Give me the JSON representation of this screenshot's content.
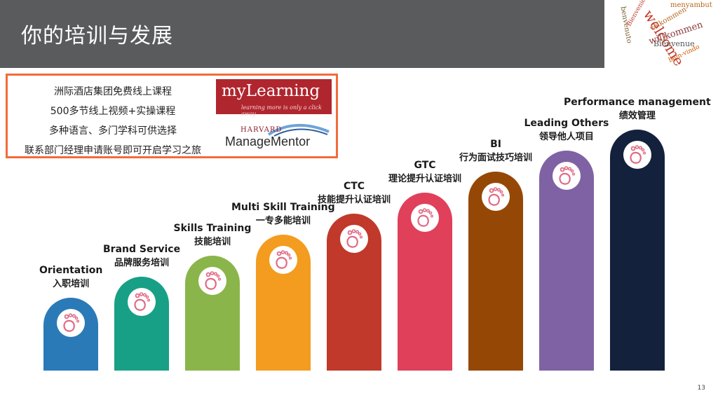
{
  "slide": {
    "title": "你的培训与发展",
    "page_number": "13"
  },
  "welcome_words": [
    "welcome",
    "Bienvenue",
    "willkommen",
    "velkommen",
    "menyambut",
    "benvenuto",
    "Bienvenido",
    "bem-vindo"
  ],
  "promo": {
    "lines": [
      "洲际酒店集团免费线上课程",
      "500多节线上视频+实操课程",
      "多种语言、多门学科可供选择",
      "联系部门经理申请账号即可开启学习之旅"
    ],
    "mylearning_name": "myLearning",
    "mylearning_tagline": "learning more is only a click away",
    "harvard_top": "HARVARD",
    "harvard_main": "ManageMentor"
  },
  "steps": [
    {
      "en": "Orientation",
      "cn": "入职培训",
      "color": "#2a7ab8"
    },
    {
      "en": "Brand Service",
      "cn": "品牌服务培训",
      "color": "#17a085"
    },
    {
      "en": "Skills Training",
      "cn": "技能培训",
      "color": "#8ab54a"
    },
    {
      "en": "Multi Skill Training",
      "cn": "一专多能培训",
      "color": "#f39c1f"
    },
    {
      "en": "CTC",
      "cn": "技能提升认证培训",
      "color": "#c0392b"
    },
    {
      "en": "GTC",
      "cn": "理论提升认证培训",
      "color": "#e0405a"
    },
    {
      "en": "BI",
      "cn": "行为面试技巧培训",
      "color": "#954806"
    },
    {
      "en": "Leading Others",
      "cn": "领导他人项目",
      "color": "#7f62a4"
    },
    {
      "en": "Performance management",
      "cn": "绩效管理",
      "color": "#14213d"
    }
  ]
}
